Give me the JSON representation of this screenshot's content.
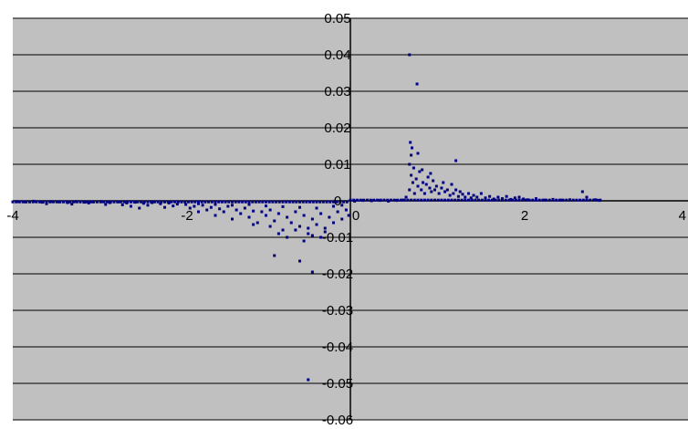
{
  "chart_data": {
    "type": "scatter",
    "title": "",
    "xlabel": "",
    "ylabel": "",
    "xlim": [
      -4,
      4
    ],
    "ylim": [
      -0.06,
      0.05
    ],
    "x_ticks": [
      -4,
      -2,
      0,
      2,
      4
    ],
    "x_tick_labels": [
      "-4",
      "-2",
      "0",
      "2",
      "4"
    ],
    "y_ticks": [
      0.05,
      0.04,
      0.03,
      0.02,
      0.01,
      0,
      -0.01,
      -0.02,
      -0.03,
      -0.04,
      -0.05,
      -0.06
    ],
    "y_tick_labels": [
      "0.05",
      "0.04",
      "0.03",
      "0.02",
      "0.01",
      "0",
      "-0.01",
      "-0.02",
      "-0.03",
      "-0.04",
      "-0.05",
      "-0.06"
    ],
    "grid": true,
    "legend": "none",
    "colors": {
      "plot_background": "#c0c0c0",
      "marker": "#000080",
      "grid": "#000000"
    },
    "series": [
      {
        "values": [
          [
            -3.95,
            -0.0002
          ],
          [
            -3.85,
            -0.0003
          ],
          [
            -3.75,
            -0.0001
          ],
          [
            -3.65,
            -0.0004
          ],
          [
            -3.55,
            -0.0002
          ],
          [
            -3.45,
            -0.0003
          ],
          [
            -3.35,
            -0.0005
          ],
          [
            -3.25,
            -0.0002
          ],
          [
            -3.15,
            -0.0004
          ],
          [
            -3.05,
            -0.0003
          ],
          [
            -2.95,
            -0.0002
          ],
          [
            -2.85,
            -0.0005
          ],
          [
            -2.75,
            -0.0003
          ],
          [
            -2.65,
            -0.0006
          ],
          [
            -2.55,
            -0.0004
          ],
          [
            -2.45,
            -0.0007
          ],
          [
            -2.35,
            -0.0005
          ],
          [
            -2.25,
            -0.0008
          ],
          [
            -2.15,
            -0.0006
          ],
          [
            -2.05,
            -0.0009
          ],
          [
            -3.6,
            -0.0008
          ],
          [
            -3.3,
            -0.0009
          ],
          [
            -3.1,
            -0.0006
          ],
          [
            -2.9,
            -0.001
          ],
          [
            -2.7,
            -0.0011
          ],
          [
            -2.6,
            -0.0015
          ],
          [
            -2.4,
            -0.0012
          ],
          [
            -2.2,
            -0.0018
          ],
          [
            -2.1,
            -0.0014
          ],
          [
            -2.5,
            -0.002
          ],
          [
            -1.95,
            -0.001
          ],
          [
            -1.9,
            -0.002
          ],
          [
            -1.85,
            -0.0015
          ],
          [
            -1.8,
            -0.003
          ],
          [
            -1.75,
            -0.0012
          ],
          [
            -1.7,
            -0.0025
          ],
          [
            -1.65,
            -0.0018
          ],
          [
            -1.6,
            -0.004
          ],
          [
            -1.55,
            -0.0022
          ],
          [
            -1.5,
            -0.003
          ],
          [
            -1.45,
            -0.0015
          ],
          [
            -1.4,
            -0.005
          ],
          [
            -1.35,
            -0.0025
          ],
          [
            -1.3,
            -0.0035
          ],
          [
            -1.25,
            -0.002
          ],
          [
            -1.2,
            -0.0045
          ],
          [
            -1.15,
            -0.0028
          ],
          [
            -1.1,
            -0.006
          ],
          [
            -1.05,
            -0.003
          ],
          [
            -1.0,
            -0.004
          ],
          [
            -0.95,
            -0.0025
          ],
          [
            -0.9,
            -0.0055
          ],
          [
            -0.85,
            -0.0035
          ],
          [
            -0.8,
            -0.008
          ],
          [
            -0.75,
            -0.0045
          ],
          [
            -0.7,
            -0.006
          ],
          [
            -0.65,
            -0.003
          ],
          [
            -0.6,
            -0.007
          ],
          [
            -0.55,
            -0.004
          ],
          [
            -0.5,
            -0.009
          ],
          [
            -0.45,
            -0.005
          ],
          [
            -0.4,
            -0.0065
          ],
          [
            -0.35,
            -0.0035
          ],
          [
            -0.3,
            -0.0075
          ],
          [
            -0.25,
            -0.0045
          ],
          [
            -0.2,
            -0.006
          ],
          [
            -0.15,
            -0.003
          ],
          [
            -0.1,
            -0.005
          ],
          [
            -0.05,
            -0.0025
          ],
          [
            -0.02,
            -0.004
          ],
          [
            -1.8,
            -0.0008
          ],
          [
            -1.6,
            -0.001
          ],
          [
            -1.4,
            -0.0012
          ],
          [
            -1.2,
            -0.001
          ],
          [
            -1.0,
            -0.0014
          ],
          [
            -0.8,
            -0.0016
          ],
          [
            -0.6,
            -0.0018
          ],
          [
            -0.4,
            -0.002
          ],
          [
            -0.2,
            -0.0015
          ],
          [
            -0.1,
            -0.0012
          ],
          [
            -0.75,
            -0.01
          ],
          [
            -0.65,
            -0.008
          ],
          [
            -0.55,
            -0.011
          ],
          [
            -0.45,
            -0.0095
          ],
          [
            -0.3,
            -0.0085
          ],
          [
            -0.95,
            -0.007
          ],
          [
            -1.15,
            -0.0065
          ],
          [
            -0.85,
            -0.009
          ],
          [
            -0.5,
            -0.0075
          ],
          [
            -0.35,
            -0.01
          ],
          [
            -0.9,
            -0.015
          ],
          [
            -0.6,
            -0.0165
          ],
          [
            -0.45,
            -0.0195
          ],
          [
            -0.5,
            -0.049
          ],
          [
            0.05,
            -0.0001
          ],
          [
            0.15,
            0.0001
          ],
          [
            0.25,
            0.0
          ],
          [
            0.35,
            0.0001
          ],
          [
            0.45,
            -0.0001
          ],
          [
            0.55,
            0.0001
          ],
          [
            0.62,
            0.0002
          ],
          [
            0.66,
            0.001
          ],
          [
            0.7,
            0.003
          ],
          [
            0.72,
            0.007
          ],
          [
            0.74,
            0.005
          ],
          [
            0.76,
            0.002
          ],
          [
            0.78,
            0.006
          ],
          [
            0.8,
            0.004
          ],
          [
            0.82,
            0.008
          ],
          [
            0.84,
            0.003
          ],
          [
            0.86,
            0.005
          ],
          [
            0.88,
            0.002
          ],
          [
            0.9,
            0.0045
          ],
          [
            0.92,
            0.0065
          ],
          [
            0.94,
            0.0035
          ],
          [
            0.96,
            0.0025
          ],
          [
            0.98,
            0.0055
          ],
          [
            1.0,
            0.003
          ],
          [
            1.02,
            0.004
          ],
          [
            1.05,
            0.002
          ],
          [
            1.08,
            0.0035
          ],
          [
            1.1,
            0.005
          ],
          [
            1.12,
            0.0025
          ],
          [
            1.15,
            0.003
          ],
          [
            1.18,
            0.0015
          ],
          [
            1.2,
            0.0045
          ],
          [
            1.22,
            0.002
          ],
          [
            1.25,
            0.003
          ],
          [
            1.28,
            0.0012
          ],
          [
            1.3,
            0.0025
          ],
          [
            1.33,
            0.0018
          ],
          [
            1.36,
            0.001
          ],
          [
            1.4,
            0.002
          ],
          [
            1.43,
            0.0008
          ],
          [
            1.46,
            0.0015
          ],
          [
            1.5,
            0.001
          ],
          [
            1.55,
            0.002
          ],
          [
            1.6,
            0.0008
          ],
          [
            1.65,
            0.0012
          ],
          [
            1.7,
            0.0005
          ],
          [
            1.75,
            0.001
          ],
          [
            1.8,
            0.0006
          ],
          [
            1.85,
            0.0012
          ],
          [
            1.9,
            0.0004
          ],
          [
            1.95,
            0.0008
          ],
          [
            2.0,
            0.001
          ],
          [
            2.05,
            0.0005
          ],
          [
            2.1,
            0.0003
          ],
          [
            2.2,
            0.0006
          ],
          [
            2.3,
            0.0002
          ],
          [
            2.4,
            0.0004
          ],
          [
            2.5,
            0.0002
          ],
          [
            2.6,
            0.0003
          ],
          [
            2.75,
            0.0025
          ],
          [
            2.8,
            0.001
          ],
          [
            2.9,
            0.0003
          ],
          [
            2.95,
            0.0001
          ],
          [
            0.7,
            0.01
          ],
          [
            0.72,
            0.0125
          ],
          [
            0.73,
            0.0145
          ],
          [
            0.71,
            0.016
          ],
          [
            0.8,
            0.013
          ],
          [
            1.25,
            0.011
          ],
          [
            0.85,
            0.0085
          ],
          [
            0.75,
            0.009
          ],
          [
            0.95,
            0.0075
          ],
          [
            0.79,
            0.032
          ],
          [
            0.7,
            0.04
          ]
        ]
      }
    ]
  }
}
